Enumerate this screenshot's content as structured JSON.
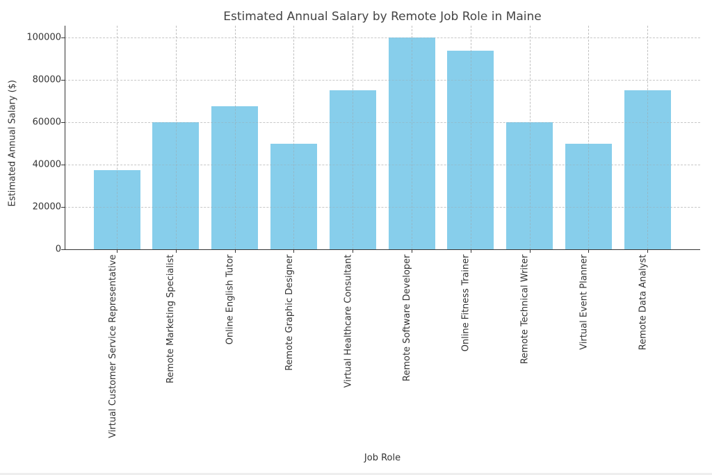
{
  "chart_data": {
    "type": "bar",
    "title": "Estimated Annual Salary by Remote Job Role in Maine",
    "xlabel": "Job Role",
    "ylabel": "Estimated Annual Salary ($)",
    "categories": [
      "Virtual Customer Service Representative",
      "Remote Marketing Specialist",
      "Online English Tutor",
      "Remote Graphic Designer",
      "Virtual Healthcare Consultant",
      "Remote Software Developer",
      "Online Fitness Trainer",
      "Remote Technical Writer",
      "Virtual Event Planner",
      "Remote Data Analyst"
    ],
    "values": [
      37500,
      60000,
      67500,
      50000,
      75000,
      100000,
      93750,
      60000,
      50000,
      75000
    ],
    "ylim": [
      0,
      105000
    ],
    "yticks": [
      "0",
      "20000",
      "40000",
      "60000",
      "80000",
      "100000"
    ],
    "grid": true,
    "legend": null,
    "bar_color": "#87ceeb"
  }
}
